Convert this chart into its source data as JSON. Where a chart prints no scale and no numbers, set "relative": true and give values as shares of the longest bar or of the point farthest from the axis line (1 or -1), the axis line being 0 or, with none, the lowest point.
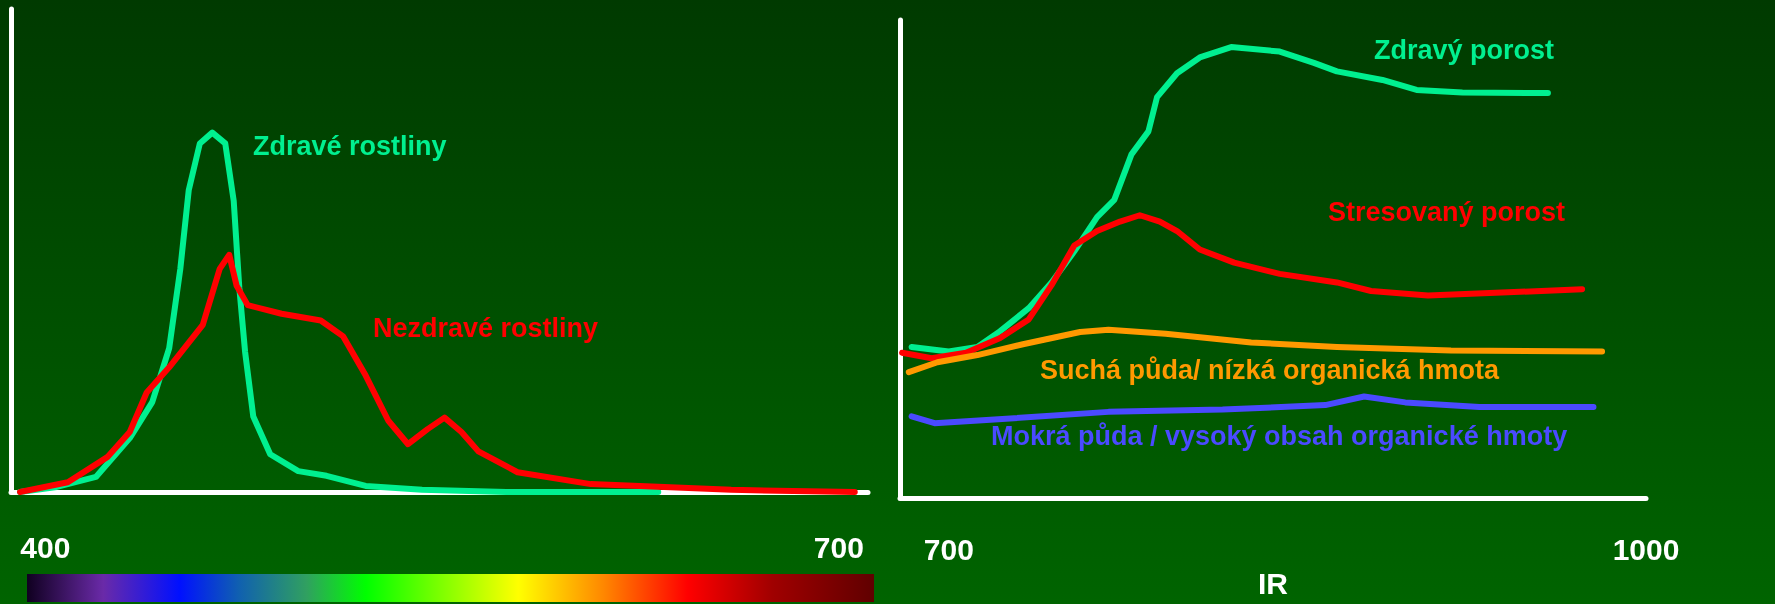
{
  "chart_data": [
    {
      "type": "line",
      "relative": true,
      "xlim": [
        387,
        711
      ],
      "xticks": [
        400,
        700
      ],
      "legend": false,
      "marker": "none",
      "series": [
        {
          "name": "Zdravé rostliny",
          "color": "#00f090",
          "x": [
            390.4,
            404.3,
            419.1,
            431.9,
            440.4,
            446.8,
            451,
            454.2,
            458.4,
            463.1,
            468,
            471.2,
            473.3,
            475.5,
            478.6,
            485,
            495.6,
            506.3,
            521.1,
            542.4,
            574.3,
            631.7
          ],
          "values": [
            0,
            0.014,
            0.042,
            0.15,
            0.25,
            0.4,
            0.62,
            0.84,
            0.97,
            1,
            0.97,
            0.81,
            0.57,
            0.39,
            0.21,
            0.105,
            0.058,
            0.045,
            0.017,
            0.006,
            0,
            0
          ]
        },
        {
          "name": "Nezdravé rostliny",
          "color": "#ff0000",
          "x": [
            390.4,
            408.5,
            423.4,
            431.9,
            438.3,
            446.8,
            459.5,
            465.9,
            469.5,
            472.3,
            476.5,
            489.3,
            504.1,
            512.6,
            521.1,
            529.6,
            537.1,
            544.5,
            550.9,
            557.3,
            563.7,
            578.5,
            606.2,
            659.3,
            706
          ],
          "values": [
            0,
            0.027,
            0.097,
            0.167,
            0.277,
            0.347,
            0.465,
            0.621,
            0.66,
            0.574,
            0.52,
            0.496,
            0.477,
            0.433,
            0.324,
            0.199,
            0.133,
            0.175,
            0.207,
            0.167,
            0.113,
            0.055,
            0.022,
            0.006,
            0
          ]
        }
      ]
    },
    {
      "type": "line",
      "relative": true,
      "xlim": [
        679,
        1000
      ],
      "xticks": [
        700,
        1000
      ],
      "xlabel": "IR",
      "legend": false,
      "marker": "none",
      "series": [
        {
          "name": "Zdravý porost",
          "color": "#00f090",
          "x": [
            684,
            700,
            712.3,
            722.1,
            734.4,
            744.2,
            754,
            763.8,
            771.2,
            778.6,
            785.9,
            789.6,
            798.2,
            808,
            821.5,
            842.4,
            857.1,
            867,
            886.6,
            901.3,
            921,
            957.8
          ],
          "values": [
            0.335,
            0.325,
            0.335,
            0.37,
            0.421,
            0.478,
            0.547,
            0.623,
            0.661,
            0.762,
            0.813,
            0.889,
            0.942,
            0.977,
            1,
            0.99,
            0.965,
            0.946,
            0.927,
            0.905,
            0.899,
            0.898
          ]
        },
        {
          "name": "Stresovaný porost",
          "color": "#ff0000",
          "x": [
            679.9,
            692.6,
            707.4,
            722.1,
            734.4,
            744.2,
            754,
            763.8,
            773.7,
            782.2,
            790.8,
            798.2,
            808,
            822.8,
            842.4,
            867,
            881.7,
            906.2,
            940.6,
            972.5
          ],
          "values": [
            0.322,
            0.31,
            0.322,
            0.355,
            0.396,
            0.472,
            0.56,
            0.592,
            0.613,
            0.627,
            0.613,
            0.592,
            0.551,
            0.522,
            0.497,
            0.478,
            0.459,
            0.449,
            0.456,
            0.463
          ]
        },
        {
          "name": "Suchá půda/ nízká organická hmota",
          "color": "#ff9900",
          "x": [
            682.8,
            695.1,
            712.3,
            731.9,
            756.5,
            768.7,
            793.3,
            830.1,
            867,
            916.1,
            981.1
          ],
          "values": [
            0.279,
            0.301,
            0.317,
            0.341,
            0.368,
            0.373,
            0.364,
            0.345,
            0.335,
            0.327,
            0.325
          ]
        },
        {
          "name": "Mokrá půda / vysoký obsah organické hmoty",
          "color": "#4a4aff",
          "x": [
            684,
            693.9,
            719.6,
            768.7,
            817.8,
            862,
            878.7,
            896.4,
            928.3,
            977.4
          ],
          "values": [
            0.181,
            0.166,
            0.174,
            0.191,
            0.196,
            0.206,
            0.225,
            0.212,
            0.202,
            0.202
          ]
        }
      ]
    }
  ]
}
